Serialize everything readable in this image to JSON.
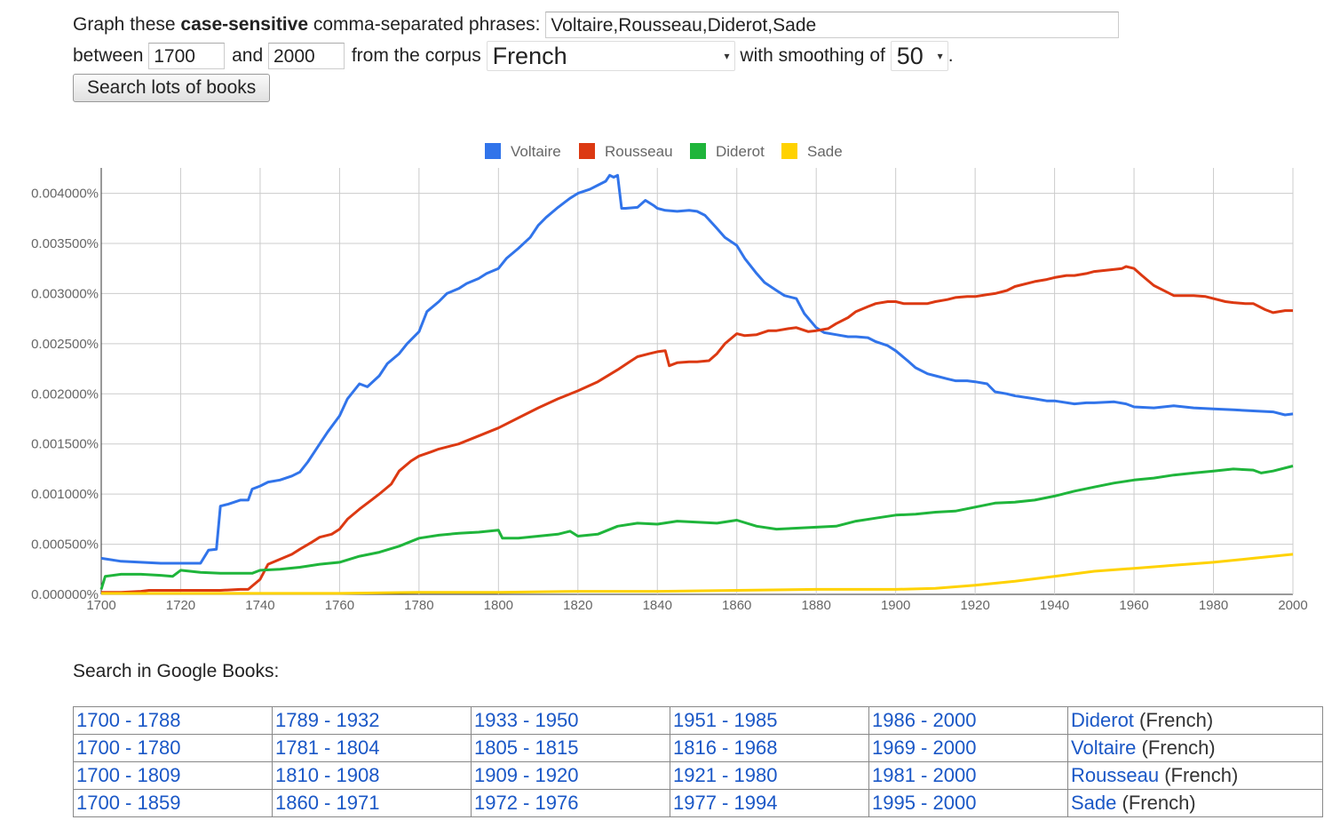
{
  "form": {
    "line1_prefix": "Graph these ",
    "line1_bold": "case-sensitive",
    "line1_suffix": " comma-separated phrases:",
    "phrases_value": "Voltaire,Rousseau,Diderot,Sade",
    "between_label": "between",
    "start_year": "1700",
    "and_label": "and",
    "end_year": "2000",
    "corpus_label": "from the corpus",
    "corpus_value": "French",
    "smoothing_label": "with smoothing of",
    "smoothing_value": "50",
    "period": ".",
    "search_button": "Search lots of books"
  },
  "chart_data": {
    "type": "line",
    "title": "",
    "xlabel": "",
    "ylabel": "",
    "xlim": [
      1700,
      2000
    ],
    "ylim": [
      0,
      0.0042
    ],
    "x_ticks": [
      "1700",
      "1720",
      "1740",
      "1760",
      "1780",
      "1800",
      "1820",
      "1840",
      "1860",
      "1880",
      "1900",
      "1920",
      "1940",
      "1960",
      "1980",
      "2000"
    ],
    "y_ticks": [
      "0.000000%",
      "0.000500%",
      "0.001000%",
      "0.001500%",
      "0.002000%",
      "0.002500%",
      "0.003000%",
      "0.003500%",
      "0.004000%"
    ],
    "grid": true,
    "legend_position": "top",
    "series": [
      {
        "name": "Voltaire",
        "color": "#3174ea",
        "x": [
          1700,
          1705,
          1710,
          1715,
          1720,
          1725,
          1727,
          1729,
          1730,
          1732,
          1735,
          1737,
          1738,
          1740,
          1742,
          1745,
          1748,
          1750,
          1752,
          1755,
          1757,
          1760,
          1762,
          1765,
          1767,
          1770,
          1772,
          1775,
          1777,
          1780,
          1782,
          1785,
          1787,
          1790,
          1792,
          1795,
          1797,
          1800,
          1802,
          1805,
          1808,
          1810,
          1812,
          1815,
          1818,
          1820,
          1823,
          1825,
          1827,
          1828,
          1829,
          1830,
          1831,
          1832,
          1835,
          1837,
          1839,
          1840,
          1842,
          1845,
          1848,
          1850,
          1852,
          1855,
          1857,
          1860,
          1862,
          1865,
          1867,
          1870,
          1872,
          1875,
          1877,
          1880,
          1882,
          1885,
          1888,
          1890,
          1893,
          1895,
          1898,
          1900,
          1903,
          1905,
          1908,
          1910,
          1913,
          1915,
          1918,
          1920,
          1923,
          1925,
          1928,
          1930,
          1935,
          1938,
          1940,
          1945,
          1948,
          1950,
          1955,
          1958,
          1960,
          1965,
          1970,
          1975,
          1980,
          1985,
          1990,
          1995,
          1998,
          2000
        ],
        "values": [
          0.00036,
          0.00033,
          0.00032,
          0.00031,
          0.00031,
          0.00031,
          0.00044,
          0.00045,
          0.00088,
          0.0009,
          0.00094,
          0.00094,
          0.00105,
          0.00108,
          0.00112,
          0.00114,
          0.00118,
          0.00122,
          0.00132,
          0.0015,
          0.00162,
          0.00178,
          0.00195,
          0.0021,
          0.00207,
          0.00218,
          0.0023,
          0.0024,
          0.0025,
          0.00262,
          0.00282,
          0.00292,
          0.003,
          0.00305,
          0.0031,
          0.00315,
          0.0032,
          0.00325,
          0.00335,
          0.00345,
          0.00356,
          0.00368,
          0.00376,
          0.00386,
          0.00395,
          0.004,
          0.00404,
          0.00408,
          0.00412,
          0.00418,
          0.00416,
          0.00418,
          0.00385,
          0.00385,
          0.00386,
          0.00393,
          0.00388,
          0.00385,
          0.00383,
          0.00382,
          0.00383,
          0.00382,
          0.00378,
          0.00365,
          0.00356,
          0.00348,
          0.00335,
          0.0032,
          0.00311,
          0.00303,
          0.00298,
          0.00295,
          0.0028,
          0.00266,
          0.00261,
          0.00259,
          0.00257,
          0.00257,
          0.00256,
          0.00252,
          0.00248,
          0.00243,
          0.00233,
          0.00226,
          0.0022,
          0.00218,
          0.00215,
          0.00213,
          0.00213,
          0.00212,
          0.0021,
          0.00202,
          0.002,
          0.00198,
          0.00195,
          0.00193,
          0.00193,
          0.0019,
          0.00191,
          0.00191,
          0.00192,
          0.0019,
          0.00187,
          0.00186,
          0.00188,
          0.00186,
          0.00185,
          0.00184,
          0.00183,
          0.00182,
          0.00179,
          0.0018
        ]
      },
      {
        "name": "Rousseau",
        "color": "#dc3912",
        "x": [
          1700,
          1705,
          1710,
          1712,
          1715,
          1720,
          1725,
          1730,
          1735,
          1737,
          1740,
          1742,
          1745,
          1748,
          1750,
          1753,
          1755,
          1758,
          1760,
          1762,
          1765,
          1768,
          1770,
          1773,
          1775,
          1778,
          1780,
          1783,
          1785,
          1790,
          1795,
          1800,
          1805,
          1810,
          1815,
          1820,
          1825,
          1830,
          1833,
          1835,
          1838,
          1840,
          1842,
          1843,
          1845,
          1848,
          1850,
          1853,
          1855,
          1857,
          1860,
          1862,
          1865,
          1868,
          1870,
          1873,
          1875,
          1878,
          1880,
          1883,
          1885,
          1888,
          1890,
          1893,
          1895,
          1898,
          1900,
          1902,
          1905,
          1908,
          1910,
          1913,
          1915,
          1918,
          1920,
          1923,
          1925,
          1928,
          1930,
          1935,
          1938,
          1940,
          1943,
          1945,
          1948,
          1950,
          1955,
          1957,
          1958,
          1960,
          1962,
          1965,
          1968,
          1970,
          1975,
          1978,
          1980,
          1983,
          1985,
          1988,
          1990,
          1993,
          1995,
          1998,
          2000
        ],
        "values": [
          2e-05,
          2e-05,
          3e-05,
          4e-05,
          4e-05,
          4e-05,
          4e-05,
          4e-05,
          5e-05,
          5e-05,
          0.00015,
          0.0003,
          0.00035,
          0.0004,
          0.00045,
          0.00052,
          0.00057,
          0.0006,
          0.00065,
          0.00075,
          0.00085,
          0.00094,
          0.001,
          0.0011,
          0.00123,
          0.00133,
          0.00138,
          0.00142,
          0.00145,
          0.0015,
          0.00158,
          0.00166,
          0.00176,
          0.00186,
          0.00195,
          0.00203,
          0.00212,
          0.00224,
          0.00232,
          0.00237,
          0.0024,
          0.00242,
          0.00243,
          0.00228,
          0.00231,
          0.00232,
          0.00232,
          0.00233,
          0.0024,
          0.0025,
          0.0026,
          0.00258,
          0.00259,
          0.00263,
          0.00263,
          0.00265,
          0.00266,
          0.00262,
          0.00263,
          0.00265,
          0.0027,
          0.00276,
          0.00282,
          0.00287,
          0.0029,
          0.00292,
          0.00292,
          0.0029,
          0.0029,
          0.0029,
          0.00292,
          0.00294,
          0.00296,
          0.00297,
          0.00297,
          0.00299,
          0.003,
          0.00303,
          0.00307,
          0.00312,
          0.00314,
          0.00316,
          0.00318,
          0.00318,
          0.0032,
          0.00322,
          0.00324,
          0.00325,
          0.00327,
          0.00325,
          0.00318,
          0.00308,
          0.00302,
          0.00298,
          0.00298,
          0.00297,
          0.00295,
          0.00292,
          0.00291,
          0.0029,
          0.0029,
          0.00284,
          0.00281,
          0.00283,
          0.00283
        ]
      },
      {
        "name": "Diderot",
        "color": "#1fb53b",
        "x": [
          1700,
          1701,
          1705,
          1710,
          1715,
          1718,
          1720,
          1725,
          1730,
          1735,
          1738,
          1740,
          1745,
          1750,
          1755,
          1760,
          1765,
          1770,
          1775,
          1780,
          1785,
          1790,
          1795,
          1800,
          1801,
          1805,
          1810,
          1815,
          1818,
          1820,
          1825,
          1830,
          1835,
          1840,
          1845,
          1850,
          1855,
          1860,
          1865,
          1870,
          1875,
          1880,
          1885,
          1890,
          1895,
          1900,
          1905,
          1910,
          1915,
          1920,
          1925,
          1930,
          1935,
          1940,
          1945,
          1950,
          1955,
          1960,
          1965,
          1970,
          1975,
          1980,
          1985,
          1990,
          1992,
          1995,
          2000
        ],
        "values": [
          5e-05,
          0.00018,
          0.0002,
          0.0002,
          0.00019,
          0.00018,
          0.00024,
          0.00022,
          0.00021,
          0.00021,
          0.00021,
          0.00024,
          0.00025,
          0.00027,
          0.0003,
          0.00032,
          0.00038,
          0.00042,
          0.00048,
          0.00056,
          0.00059,
          0.00061,
          0.00062,
          0.00064,
          0.00056,
          0.00056,
          0.00058,
          0.0006,
          0.00063,
          0.00058,
          0.0006,
          0.00068,
          0.00071,
          0.0007,
          0.00073,
          0.00072,
          0.00071,
          0.00074,
          0.00068,
          0.00065,
          0.00066,
          0.00067,
          0.00068,
          0.00073,
          0.00076,
          0.00079,
          0.0008,
          0.00082,
          0.00083,
          0.00087,
          0.00091,
          0.00092,
          0.00094,
          0.00098,
          0.00103,
          0.00107,
          0.00111,
          0.00114,
          0.00116,
          0.00119,
          0.00121,
          0.00123,
          0.00125,
          0.00124,
          0.00121,
          0.00123,
          0.00128
        ]
      },
      {
        "name": "Sade",
        "color": "#ffd200",
        "x": [
          1700,
          1720,
          1740,
          1760,
          1780,
          1800,
          1820,
          1840,
          1860,
          1880,
          1900,
          1910,
          1920,
          1930,
          1940,
          1950,
          1960,
          1970,
          1980,
          1990,
          2000
        ],
        "values": [
          1e-05,
          1e-05,
          1e-05,
          1e-05,
          2e-05,
          2e-05,
          3e-05,
          3e-05,
          4e-05,
          5e-05,
          5e-05,
          6e-05,
          9e-05,
          0.00013,
          0.00018,
          0.00023,
          0.00026,
          0.00029,
          0.00032,
          0.00036,
          0.0004
        ]
      }
    ]
  },
  "search_header": "Search in Google Books:",
  "books_table": {
    "rows": [
      {
        "ranges": [
          "1700 - 1788",
          "1789 - 1932",
          "1933 - 1950",
          "1951 - 1985",
          "1986 - 2000"
        ],
        "term": "Diderot",
        "corpus": "(French)"
      },
      {
        "ranges": [
          "1700 - 1780",
          "1781 - 1804",
          "1805 - 1815",
          "1816 - 1968",
          "1969 - 2000"
        ],
        "term": "Voltaire",
        "corpus": "(French)"
      },
      {
        "ranges": [
          "1700 - 1809",
          "1810 - 1908",
          "1909 - 1920",
          "1921 - 1980",
          "1981 - 2000"
        ],
        "term": "Rousseau",
        "corpus": "(French)"
      },
      {
        "ranges": [
          "1700 - 1859",
          "1860 - 1971",
          "1972 - 1976",
          "1977 - 1994",
          "1995 - 2000"
        ],
        "term": "Sade",
        "corpus": "(French)"
      }
    ]
  }
}
